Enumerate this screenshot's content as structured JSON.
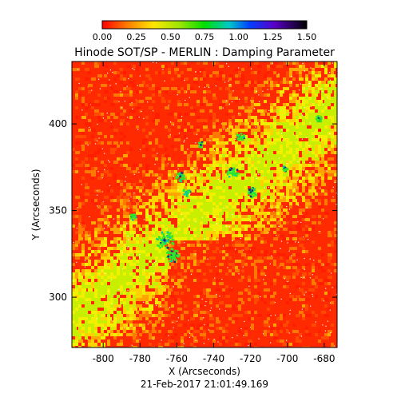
{
  "title": "Hinode SOT/SP - MERLIN : Damping Parameter",
  "timestamp": "21-Feb-2017 21:01:49.169",
  "colorbar": {
    "tick_labels": [
      "0.00",
      "0.25",
      "0.50",
      "0.75",
      "1.00",
      "1.25",
      "1.50"
    ],
    "range": [
      0,
      1.5
    ]
  },
  "chart_data": {
    "type": "heatmap",
    "title": "Hinode SOT/SP - MERLIN : Damping Parameter",
    "xlabel": "X (Arcseconds)",
    "ylabel": "Y (Arcseconds)",
    "x_ticks": [
      "-800",
      "-780",
      "-760",
      "-740",
      "-720",
      "-700",
      "-680"
    ],
    "y_ticks": [
      "300",
      "350",
      "400"
    ],
    "xlim": [
      -817,
      -673
    ],
    "ylim": [
      271,
      436
    ],
    "value_range": [
      0,
      1.5
    ]
  }
}
